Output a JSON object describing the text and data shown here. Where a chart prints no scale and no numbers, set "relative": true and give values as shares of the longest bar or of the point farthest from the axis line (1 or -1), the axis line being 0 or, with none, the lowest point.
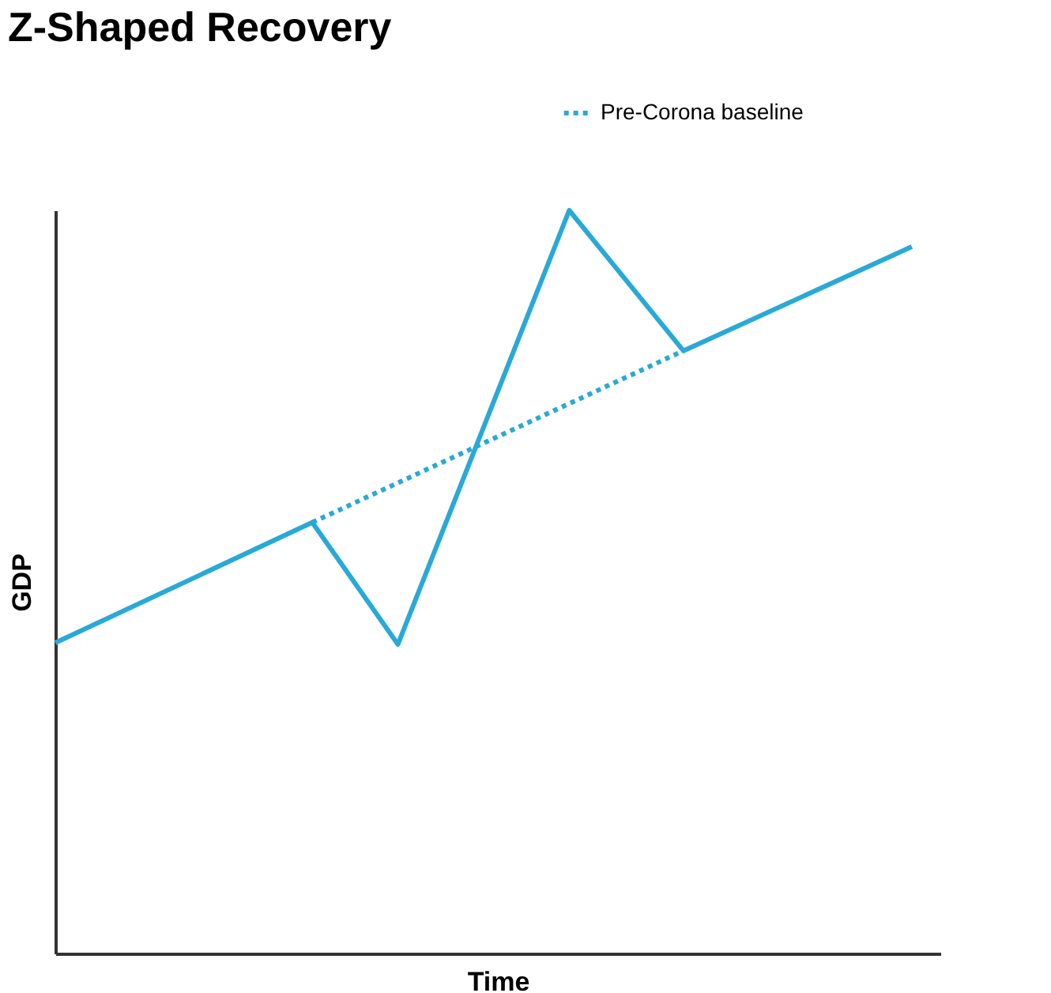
{
  "chart_data": {
    "type": "line",
    "title": "Z-Shaped Recovery",
    "xlabel": "Time",
    "ylabel": "GDP",
    "relative": true,
    "tick_labels": false,
    "grid": false,
    "legend": "top right",
    "marker": "none",
    "categories": [
      null,
      null,
      null,
      null,
      null,
      null,
      null,
      null,
      null,
      null,
      null,
      null,
      null,
      null,
      null,
      null,
      null,
      null,
      null,
      null,
      null,
      null,
      null,
      null,
      null,
      null,
      null,
      null,
      null,
      null,
      null,
      null
    ],
    "series": [
      {
        "color": "#29a9d6",
        "line_style": "solid",
        "values": [
          0.418,
          null,
          null,
          null,
          null,
          null,
          null,
          null,
          null,
          0.58,
          null,
          null,
          0.416,
          null,
          null,
          null,
          null,
          null,
          1,
          null,
          null,
          null,
          0.811,
          null,
          null,
          null,
          null,
          null,
          null,
          null,
          0.951,
          null
        ]
      },
      {
        "name": "Pre-Corona baseline",
        "color": "#29a9d6",
        "line_style": "dotted",
        "values": [
          null,
          null,
          null,
          null,
          null,
          null,
          null,
          null,
          null,
          0.58,
          null,
          null,
          null,
          null,
          null,
          null,
          null,
          null,
          null,
          null,
          null,
          null,
          0.811,
          null,
          null,
          null,
          null,
          null,
          null,
          null,
          null,
          null
        ]
      }
    ]
  }
}
